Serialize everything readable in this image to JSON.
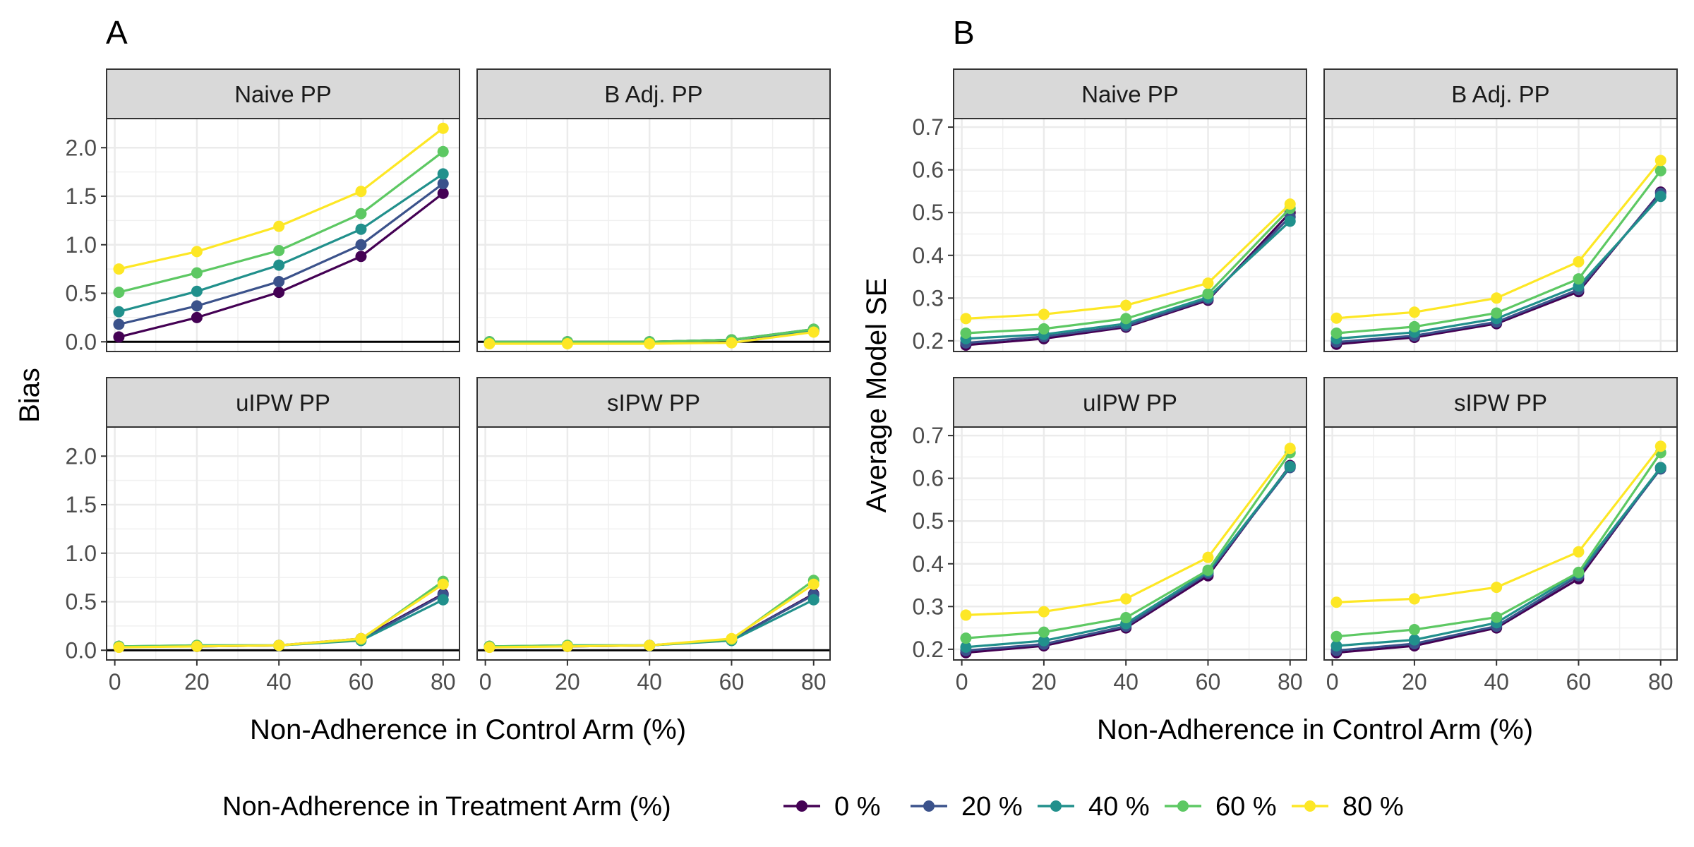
{
  "figure": {
    "panel_a_letter": "A",
    "panel_b_letter": "B",
    "panel_a_xlabel": "Non-Adherence in Control Arm (%)",
    "panel_b_xlabel": "Non-Adherence in Control Arm (%)",
    "panel_a_ylabel": "Bias",
    "panel_b_ylabel": "Average Model SE",
    "legend_title": "Non-Adherence in Treatment Arm (%)",
    "legend_labels": [
      "0 %",
      "20 %",
      "40 %",
      "60 %",
      "80 %"
    ]
  },
  "chart_data": [
    {
      "type": "line",
      "panel": "A",
      "ylabel": "Bias",
      "xlabel": "Non-Adherence in Control Arm (%)",
      "xlim": [
        -2,
        84
      ],
      "ylim": [
        -0.1,
        2.3
      ],
      "x_ticks": [
        0,
        20,
        40,
        60,
        80
      ],
      "y_ticks": [
        0.0,
        0.5,
        1.0,
        1.5,
        2.0
      ],
      "y_tick_labels": [
        "0.0",
        "0.5",
        "1.0",
        "1.5",
        "2.0"
      ],
      "reference_line": 0,
      "grid": true,
      "legend_position": "bottom",
      "colors": [
        "#440154",
        "#3B528B",
        "#21908C",
        "#5DC863",
        "#FDE725"
      ],
      "facets": [
        {
          "title": "Naive PP",
          "x": [
            1,
            20,
            40,
            60,
            80
          ],
          "series": [
            {
              "name": "0 %",
              "values": [
                0.05,
                0.25,
                0.51,
                0.88,
                1.53
              ]
            },
            {
              "name": "20 %",
              "values": [
                0.18,
                0.37,
                0.62,
                1.0,
                1.63
              ]
            },
            {
              "name": "40 %",
              "values": [
                0.31,
                0.52,
                0.79,
                1.16,
                1.73
              ]
            },
            {
              "name": "60 %",
              "values": [
                0.51,
                0.71,
                0.94,
                1.32,
                1.96
              ]
            },
            {
              "name": "80 %",
              "values": [
                0.75,
                0.93,
                1.19,
                1.55,
                2.2
              ]
            }
          ]
        },
        {
          "title": "B Adj. PP",
          "x": [
            1,
            20,
            40,
            60,
            80
          ],
          "series": [
            {
              "name": "0 %",
              "values": [
                0.0,
                0.0,
                0.0,
                0.02,
                0.11
              ]
            },
            {
              "name": "20 %",
              "values": [
                0.0,
                0.0,
                0.0,
                0.02,
                0.13
              ]
            },
            {
              "name": "40 %",
              "values": [
                0.0,
                0.0,
                0.0,
                0.02,
                0.12
              ]
            },
            {
              "name": "60 %",
              "values": [
                0.0,
                0.0,
                0.0,
                0.02,
                0.13
              ]
            },
            {
              "name": "80 %",
              "values": [
                -0.02,
                -0.02,
                -0.02,
                -0.01,
                0.1
              ]
            }
          ]
        },
        {
          "title": "uIPW PP",
          "x": [
            1,
            20,
            40,
            60,
            80
          ],
          "series": [
            {
              "name": "0 %",
              "values": [
                0.04,
                0.04,
                0.05,
                0.12,
                0.58
              ]
            },
            {
              "name": "20 %",
              "values": [
                0.04,
                0.04,
                0.05,
                0.11,
                0.57
              ]
            },
            {
              "name": "40 %",
              "values": [
                0.04,
                0.05,
                0.05,
                0.1,
                0.52
              ]
            },
            {
              "name": "60 %",
              "values": [
                0.04,
                0.05,
                0.05,
                0.11,
                0.71
              ]
            },
            {
              "name": "80 %",
              "values": [
                0.03,
                0.04,
                0.05,
                0.12,
                0.68
              ]
            }
          ]
        },
        {
          "title": "sIPW PP",
          "x": [
            1,
            20,
            40,
            60,
            80
          ],
          "series": [
            {
              "name": "0 %",
              "values": [
                0.04,
                0.04,
                0.05,
                0.11,
                0.58
              ]
            },
            {
              "name": "20 %",
              "values": [
                0.04,
                0.04,
                0.05,
                0.11,
                0.57
              ]
            },
            {
              "name": "40 %",
              "values": [
                0.04,
                0.05,
                0.05,
                0.1,
                0.52
              ]
            },
            {
              "name": "60 %",
              "values": [
                0.04,
                0.05,
                0.05,
                0.11,
                0.72
              ]
            },
            {
              "name": "80 %",
              "values": [
                0.03,
                0.04,
                0.05,
                0.12,
                0.68
              ]
            }
          ]
        }
      ]
    },
    {
      "type": "line",
      "panel": "B",
      "ylabel": "Average Model SE",
      "xlabel": "Non-Adherence in Control Arm (%)",
      "xlim": [
        -2,
        84
      ],
      "ylim": [
        0.175,
        0.72
      ],
      "x_ticks": [
        0,
        20,
        40,
        60,
        80
      ],
      "y_ticks": [
        0.2,
        0.3,
        0.4,
        0.5,
        0.6,
        0.7
      ],
      "y_tick_labels": [
        "0.2",
        "0.3",
        "0.4",
        "0.5",
        "0.6",
        "0.7"
      ],
      "grid": true,
      "legend_position": "bottom",
      "colors": [
        "#440154",
        "#3B528B",
        "#21908C",
        "#5DC863",
        "#FDE725"
      ],
      "facets": [
        {
          "title": "Naive PP",
          "x": [
            1,
            20,
            40,
            60,
            80
          ],
          "series": [
            {
              "name": "0 %",
              "values": [
                0.19,
                0.205,
                0.232,
                0.295,
                0.5
              ]
            },
            {
              "name": "20 %",
              "values": [
                0.195,
                0.21,
                0.235,
                0.298,
                0.49
              ]
            },
            {
              "name": "40 %",
              "values": [
                0.205,
                0.215,
                0.24,
                0.302,
                0.48
              ]
            },
            {
              "name": "60 %",
              "values": [
                0.218,
                0.228,
                0.252,
                0.31,
                0.51
              ]
            },
            {
              "name": "80 %",
              "values": [
                0.252,
                0.262,
                0.283,
                0.335,
                0.52
              ]
            }
          ]
        },
        {
          "title": "B Adj. PP",
          "x": [
            1,
            20,
            40,
            60,
            80
          ],
          "series": [
            {
              "name": "0 %",
              "values": [
                0.192,
                0.208,
                0.24,
                0.315,
                0.548
              ]
            },
            {
              "name": "20 %",
              "values": [
                0.197,
                0.212,
                0.244,
                0.32,
                0.545
              ]
            },
            {
              "name": "40 %",
              "values": [
                0.205,
                0.22,
                0.252,
                0.328,
                0.538
              ]
            },
            {
              "name": "60 %",
              "values": [
                0.218,
                0.233,
                0.265,
                0.345,
                0.598
              ]
            },
            {
              "name": "80 %",
              "values": [
                0.253,
                0.267,
                0.3,
                0.385,
                0.622
              ]
            }
          ]
        },
        {
          "title": "uIPW PP",
          "x": [
            1,
            20,
            40,
            60,
            80
          ],
          "series": [
            {
              "name": "0 %",
              "values": [
                0.192,
                0.208,
                0.25,
                0.372,
                0.63
              ]
            },
            {
              "name": "20 %",
              "values": [
                0.197,
                0.212,
                0.254,
                0.378,
                0.625
              ]
            },
            {
              "name": "40 %",
              "values": [
                0.205,
                0.22,
                0.26,
                0.382,
                0.628
              ]
            },
            {
              "name": "60 %",
              "values": [
                0.226,
                0.24,
                0.274,
                0.385,
                0.66
              ]
            },
            {
              "name": "80 %",
              "values": [
                0.28,
                0.288,
                0.318,
                0.415,
                0.67
              ]
            }
          ]
        },
        {
          "title": "sIPW PP",
          "x": [
            1,
            20,
            40,
            60,
            80
          ],
          "series": [
            {
              "name": "0 %",
              "values": [
                0.192,
                0.208,
                0.25,
                0.365,
                0.625
              ]
            },
            {
              "name": "20 %",
              "values": [
                0.197,
                0.213,
                0.254,
                0.372,
                0.622
              ]
            },
            {
              "name": "40 %",
              "values": [
                0.208,
                0.222,
                0.262,
                0.378,
                0.625
              ]
            },
            {
              "name": "60 %",
              "values": [
                0.23,
                0.246,
                0.275,
                0.38,
                0.66
              ]
            },
            {
              "name": "80 %",
              "values": [
                0.31,
                0.318,
                0.345,
                0.428,
                0.675
              ]
            }
          ]
        }
      ]
    }
  ]
}
